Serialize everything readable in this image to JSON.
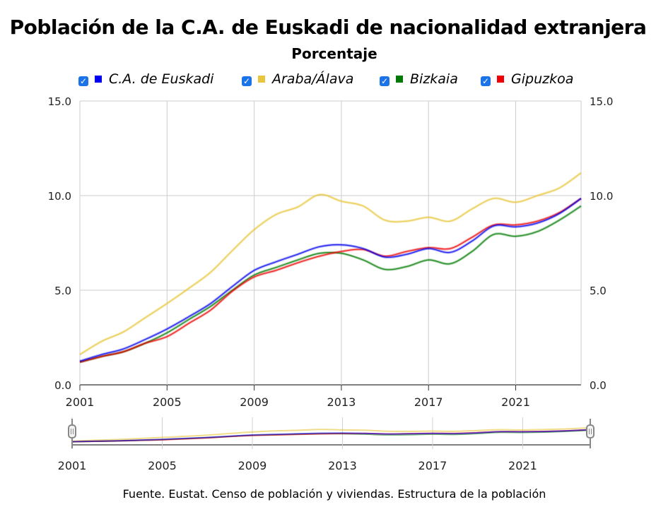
{
  "chart_data": {
    "type": "line",
    "title": "Población de la C.A. de Euskadi de nacionalidad extranjera",
    "subtitle": "Porcentaje",
    "x": [
      2001,
      2002,
      2003,
      2004,
      2005,
      2006,
      2007,
      2008,
      2009,
      2010,
      2011,
      2012,
      2013,
      2014,
      2015,
      2016,
      2017,
      2018,
      2019,
      2020,
      2021,
      2022,
      2023,
      2024
    ],
    "x_ticks": [
      "2001",
      "2005",
      "2009",
      "2013",
      "2017",
      "2021"
    ],
    "y_ticks": [
      "0.0",
      "5.0",
      "10.0",
      "15.0"
    ],
    "ylim": [
      0,
      15
    ],
    "legend_position": "top",
    "series": [
      {
        "name": "C.A. de Euskadi",
        "color": "#0000ee",
        "values": [
          1.25,
          1.6,
          1.9,
          2.4,
          2.95,
          3.6,
          4.3,
          5.2,
          6.05,
          6.5,
          6.9,
          7.3,
          7.4,
          7.2,
          6.75,
          6.9,
          7.2,
          7.0,
          7.6,
          8.4,
          8.35,
          8.55,
          9.05,
          9.85
        ]
      },
      {
        "name": "Araba/Álava",
        "color": "#e8c53a",
        "values": [
          1.6,
          2.3,
          2.8,
          3.55,
          4.3,
          5.1,
          5.95,
          7.1,
          8.2,
          9.0,
          9.4,
          10.05,
          9.7,
          9.45,
          8.7,
          8.65,
          8.85,
          8.65,
          9.3,
          9.85,
          9.65,
          10.0,
          10.4,
          11.2
        ]
      },
      {
        "name": "Bizkaia",
        "color": "#007a00",
        "values": [
          1.2,
          1.5,
          1.75,
          2.2,
          2.75,
          3.45,
          4.15,
          5.0,
          5.8,
          6.2,
          6.6,
          6.95,
          6.95,
          6.6,
          6.1,
          6.25,
          6.6,
          6.4,
          7.05,
          7.95,
          7.85,
          8.1,
          8.7,
          9.45
        ]
      },
      {
        "name": "Gipuzkoa",
        "color": "#ee0000",
        "values": [
          1.2,
          1.5,
          1.75,
          2.2,
          2.55,
          3.25,
          3.95,
          4.95,
          5.7,
          6.05,
          6.45,
          6.8,
          7.05,
          7.15,
          6.8,
          7.05,
          7.25,
          7.2,
          7.8,
          8.45,
          8.45,
          8.65,
          9.1,
          9.85
        ]
      }
    ]
  },
  "source": "Fuente. Eustat. Censo de población y viviendas. Estructura de la población",
  "checkbox_glyph": "✓"
}
